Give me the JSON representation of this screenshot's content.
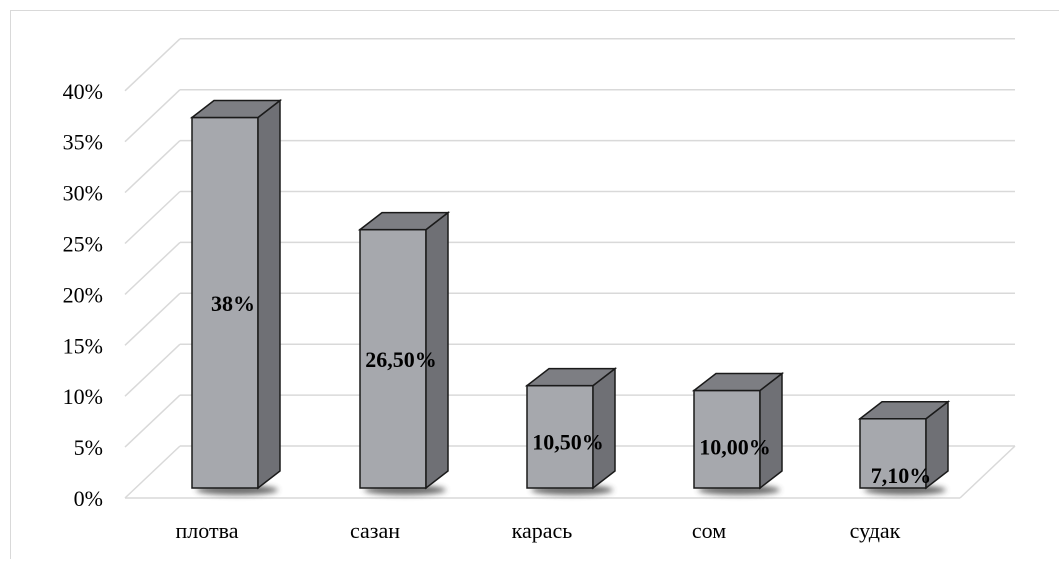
{
  "chart_data": {
    "type": "bar",
    "style": "3d-column",
    "categories": [
      "плотва",
      "сазан",
      "карась",
      "сом",
      "судак"
    ],
    "values": [
      38,
      26.5,
      10.5,
      10.0,
      7.1
    ],
    "data_labels": [
      "38%",
      "26,50%",
      "10,50%",
      "10,00%",
      "7,10%"
    ],
    "y_ticks": [
      "0%",
      "5%",
      "10%",
      "15%",
      "20%",
      "25%",
      "30%",
      "35%",
      "40%"
    ],
    "ylim": [
      0,
      40
    ],
    "y_step": 5,
    "grid": true,
    "legend": "none",
    "title": "",
    "xlabel": "",
    "ylabel": "",
    "colors": {
      "bar_front": "#a6a8ad",
      "bar_side": "#6f7075",
      "bar_top": "#7d7e83",
      "bar_edge": "#1a1a1a",
      "gridline": "#d9d9d9",
      "shadow": "#3a3a3a"
    }
  }
}
